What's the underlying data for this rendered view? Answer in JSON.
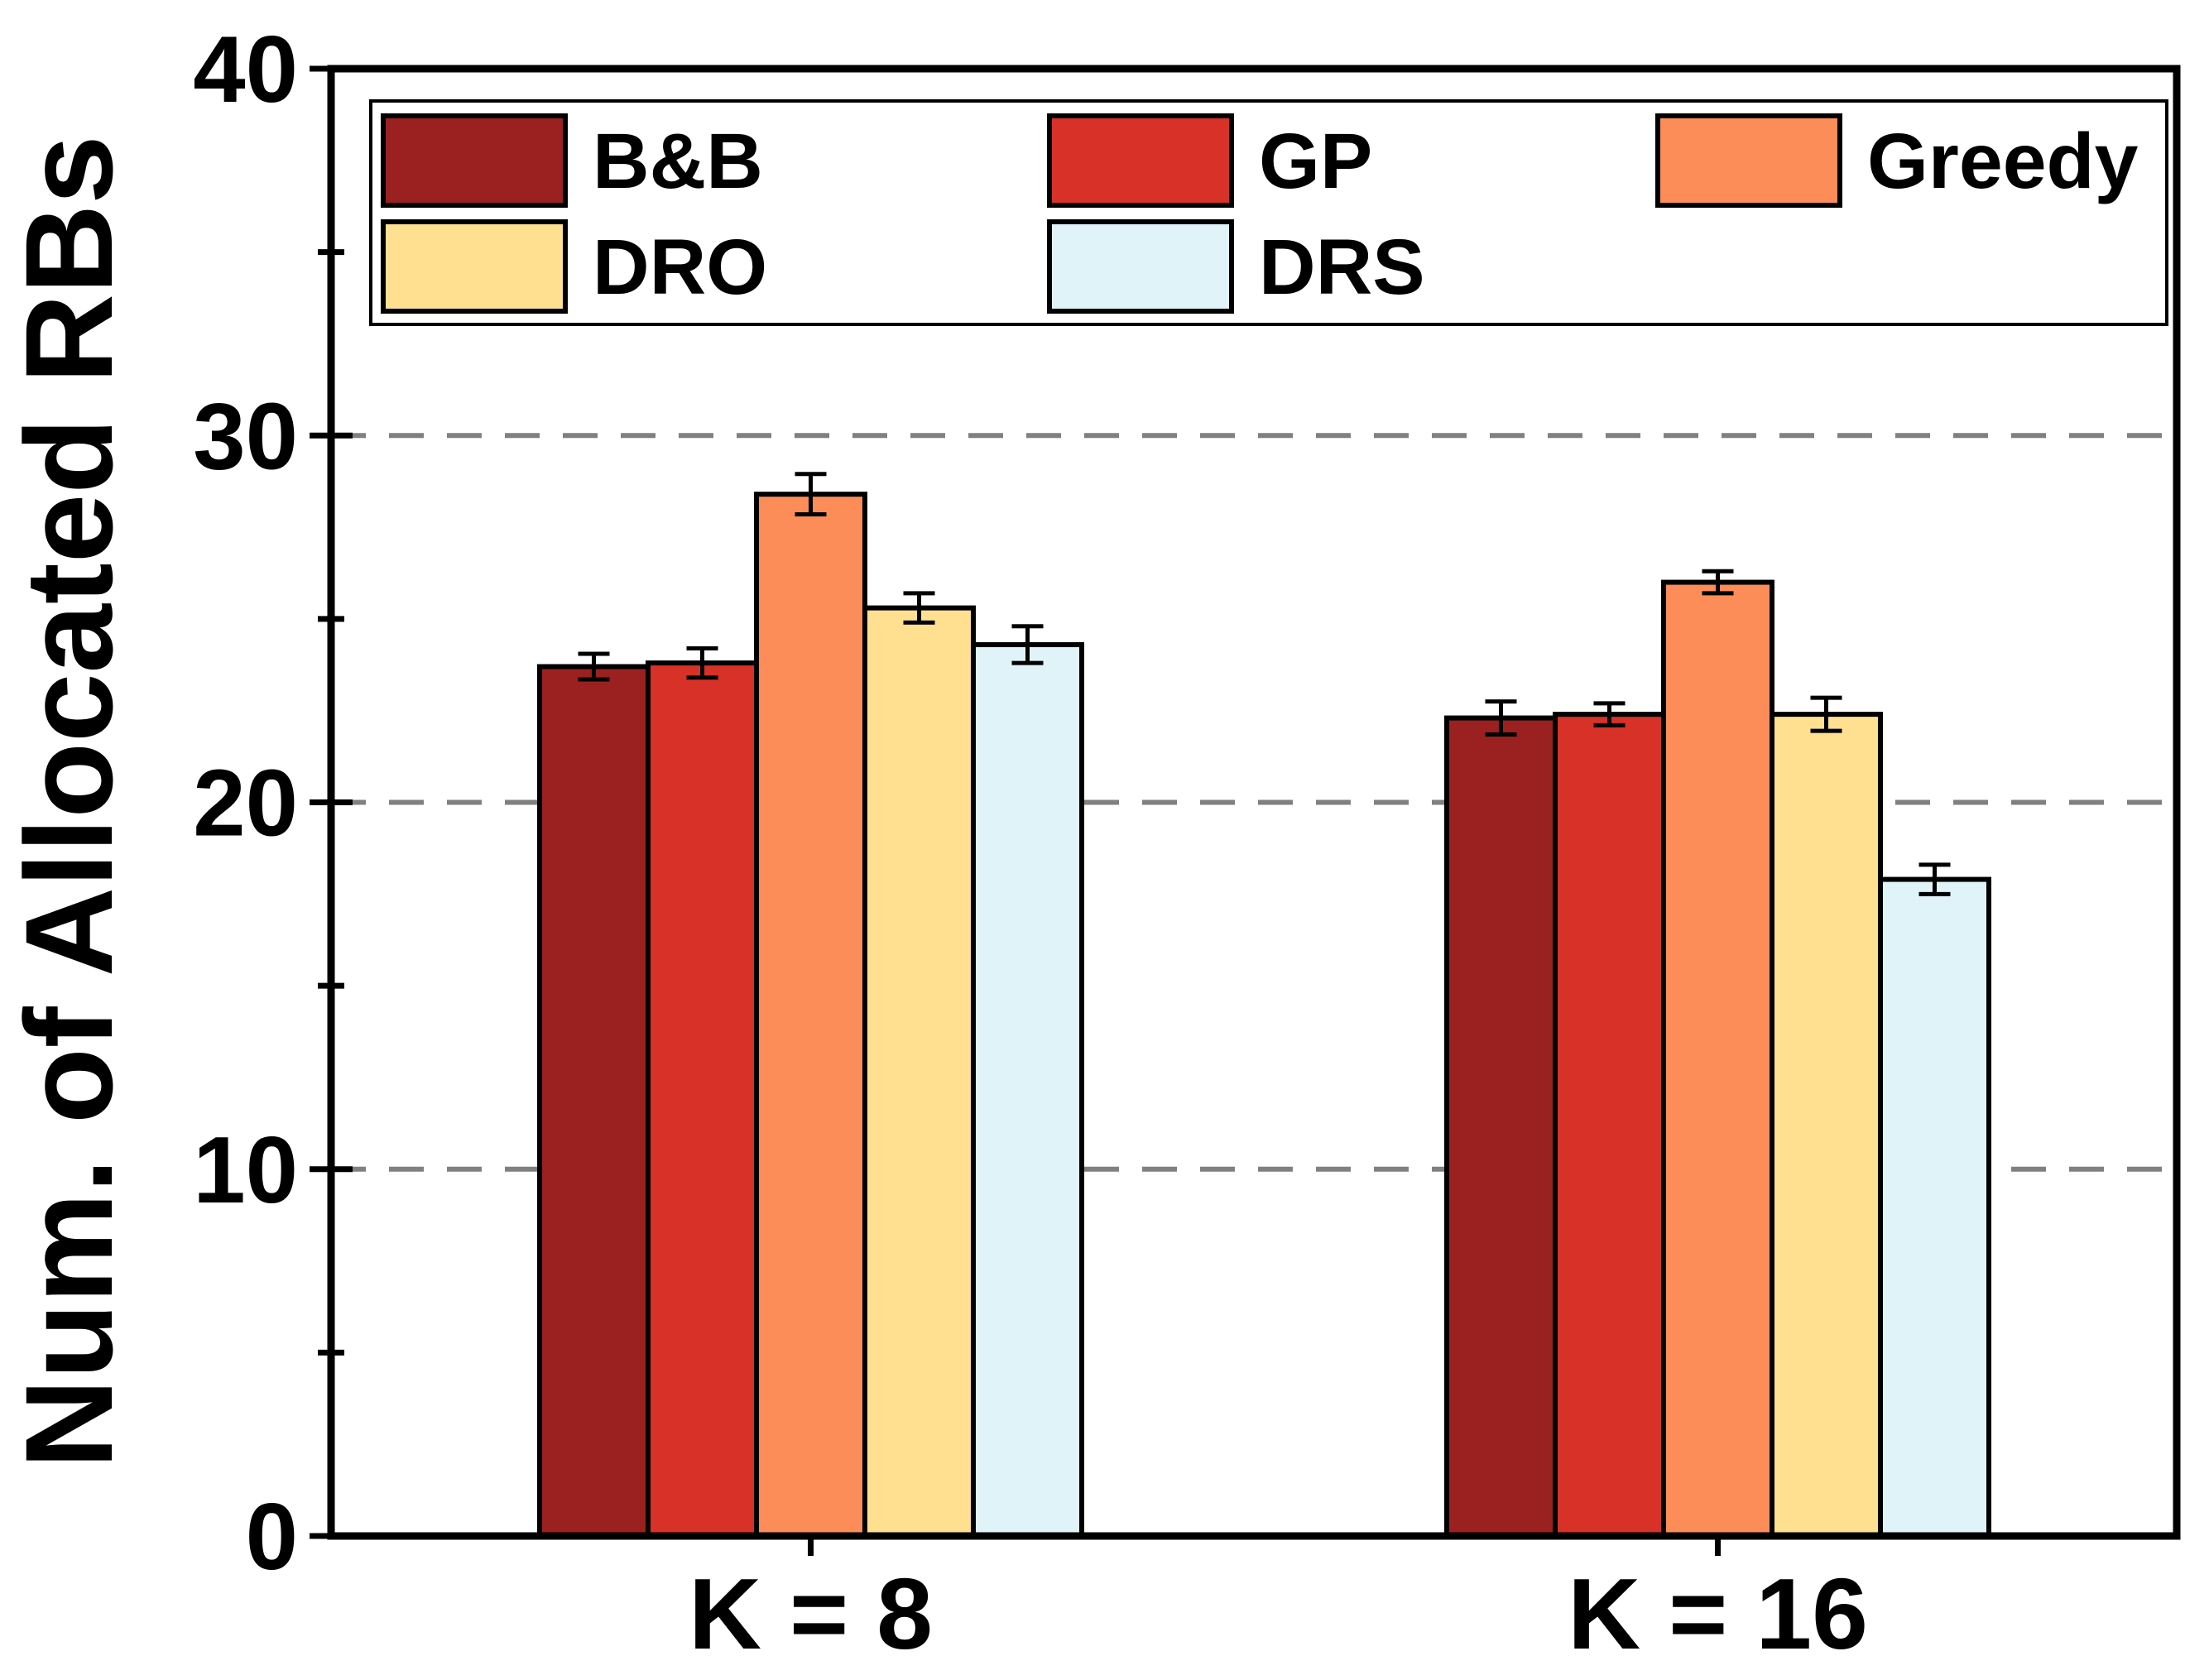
{
  "chart_data": {
    "type": "bar",
    "title": "",
    "xlabel": "",
    "ylabel": "Num. of Allocated RBs",
    "ylim": [
      0,
      40
    ],
    "yticks": [
      0,
      10,
      20,
      30,
      40
    ],
    "grid_values": [
      10,
      20,
      30
    ],
    "categories": [
      "K = 8",
      "K = 16"
    ],
    "legend_position": "top",
    "series": [
      {
        "name": "B&B",
        "color": "#9B2121",
        "values": [
          23.7,
          22.3
        ],
        "errors": [
          0.35,
          0.45
        ]
      },
      {
        "name": "GP",
        "color": "#D73128",
        "values": [
          23.8,
          22.4
        ],
        "errors": [
          0.4,
          0.3
        ]
      },
      {
        "name": "Greedy",
        "color": "#FC8D59",
        "values": [
          28.4,
          26.0
        ],
        "errors": [
          0.55,
          0.3
        ]
      },
      {
        "name": "DRO",
        "color": "#FEE090",
        "values": [
          25.3,
          22.4
        ],
        "errors": [
          0.4,
          0.45
        ]
      },
      {
        "name": "DRS",
        "color": "#E0F3F8",
        "values": [
          24.3,
          17.9
        ],
        "errors": [
          0.5,
          0.4
        ]
      }
    ]
  }
}
